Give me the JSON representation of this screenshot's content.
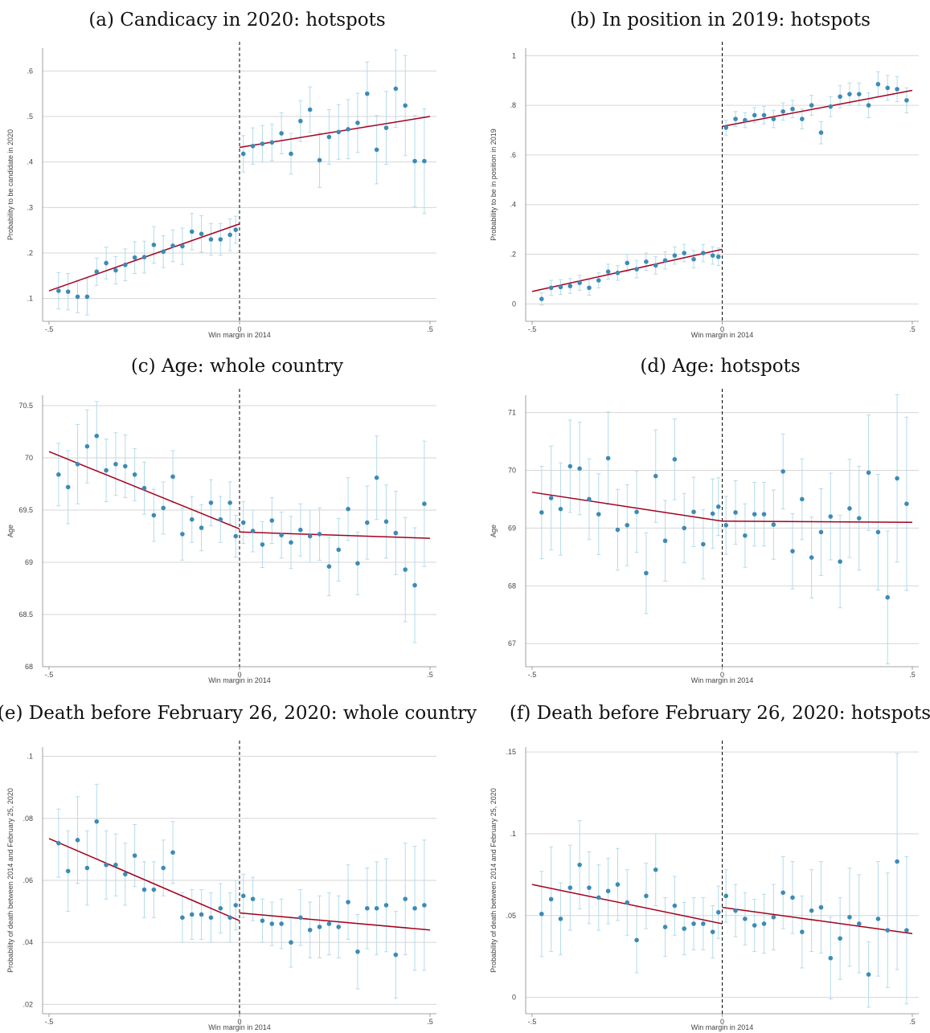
{
  "colors": {
    "point": "#3c8bb6",
    "ci": "#b5dbea",
    "fit": "#a5001c",
    "grid": "#d6d6d6"
  },
  "chart_data": [
    {
      "type": "scatter",
      "title": "(a) Candicacy in 2020: hotspots",
      "xlabel": "Win margin in 2014",
      "ylabel": "Probability to be candidate in 2020",
      "xlim": [
        -0.5,
        0.5
      ],
      "ylim": [
        0.05,
        0.65
      ],
      "yticks": [
        0.1,
        0.2,
        0.3,
        0.4,
        0.5,
        0.6
      ],
      "ytick_labels": [
        ".1",
        ".2",
        ".3",
        ".4",
        ".5",
        ".6"
      ],
      "xtick_labels": [
        "-.5",
        "0",
        ".5"
      ],
      "grid": true,
      "cutoff": 0,
      "x": [
        -0.475,
        -0.45,
        -0.425,
        -0.4,
        -0.375,
        -0.35,
        -0.325,
        -0.3,
        -0.275,
        -0.25,
        -0.225,
        -0.2,
        -0.175,
        -0.15,
        -0.125,
        -0.1,
        -0.075,
        -0.05,
        -0.025,
        -0.01,
        0.01,
        0.035,
        0.06,
        0.085,
        0.11,
        0.135,
        0.16,
        0.185,
        0.21,
        0.235,
        0.26,
        0.285,
        0.31,
        0.335,
        0.36,
        0.385,
        0.41,
        0.435,
        0.46,
        0.485
      ],
      "y": [
        0.117,
        0.115,
        0.104,
        0.104,
        0.159,
        0.178,
        0.162,
        0.174,
        0.19,
        0.191,
        0.218,
        0.203,
        0.216,
        0.215,
        0.247,
        0.242,
        0.23,
        0.23,
        0.24,
        0.251,
        0.418,
        0.435,
        0.44,
        0.443,
        0.463,
        0.418,
        0.49,
        0.515,
        0.404,
        0.455,
        0.466,
        0.472,
        0.486,
        0.55,
        0.427,
        0.475,
        0.561,
        0.524,
        0.402,
        0.402
      ],
      "ci_half": [
        0.04,
        0.04,
        0.035,
        0.04,
        0.03,
        0.035,
        0.03,
        0.035,
        0.035,
        0.035,
        0.04,
        0.035,
        0.035,
        0.04,
        0.04,
        0.04,
        0.035,
        0.035,
        0.035,
        0.03,
        0.04,
        0.04,
        0.04,
        0.04,
        0.045,
        0.045,
        0.045,
        0.05,
        0.06,
        0.06,
        0.06,
        0.065,
        0.065,
        0.07,
        0.075,
        0.08,
        0.085,
        0.11,
        0.1,
        0.115
      ],
      "fit": [
        {
          "x0": -0.5,
          "y0": 0.117,
          "x1": 0,
          "y1": 0.264
        },
        {
          "x0": 0,
          "y0": 0.432,
          "x1": 0.5,
          "y1": 0.5
        }
      ]
    },
    {
      "type": "scatter",
      "title": "(b) In position in 2019: hotspots",
      "xlabel": "Win margin in 2014",
      "ylabel": "Probability to be in position in 2019",
      "xlim": [
        -0.5,
        0.5
      ],
      "ylim": [
        -0.07,
        1.03
      ],
      "yticks": [
        0,
        0.2,
        0.4,
        0.6,
        0.8,
        1
      ],
      "ytick_labels": [
        "0",
        ".2",
        ".4",
        ".6",
        ".8",
        "1"
      ],
      "xtick_labels": [
        "-.5",
        "0",
        ".5"
      ],
      "grid": true,
      "cutoff": 0,
      "x": [
        -0.475,
        -0.45,
        -0.425,
        -0.4,
        -0.375,
        -0.35,
        -0.325,
        -0.3,
        -0.275,
        -0.25,
        -0.225,
        -0.2,
        -0.175,
        -0.15,
        -0.125,
        -0.1,
        -0.075,
        -0.05,
        -0.025,
        -0.01,
        0.01,
        0.035,
        0.06,
        0.085,
        0.11,
        0.135,
        0.16,
        0.185,
        0.21,
        0.235,
        0.26,
        0.285,
        0.31,
        0.335,
        0.36,
        0.385,
        0.41,
        0.435,
        0.46,
        0.485
      ],
      "y": [
        0.02,
        0.065,
        0.068,
        0.072,
        0.085,
        0.065,
        0.095,
        0.13,
        0.125,
        0.165,
        0.14,
        0.17,
        0.155,
        0.175,
        0.195,
        0.205,
        0.18,
        0.205,
        0.195,
        0.19,
        0.71,
        0.745,
        0.74,
        0.76,
        0.76,
        0.745,
        0.775,
        0.785,
        0.745,
        0.8,
        0.69,
        0.795,
        0.835,
        0.845,
        0.845,
        0.8,
        0.885,
        0.87,
        0.865,
        0.82
      ],
      "ci_half": [
        0.025,
        0.03,
        0.03,
        0.03,
        0.03,
        0.03,
        0.03,
        0.03,
        0.03,
        0.035,
        0.035,
        0.035,
        0.035,
        0.035,
        0.035,
        0.035,
        0.035,
        0.035,
        0.035,
        0.035,
        0.03,
        0.03,
        0.03,
        0.03,
        0.035,
        0.035,
        0.035,
        0.035,
        0.04,
        0.04,
        0.045,
        0.04,
        0.045,
        0.045,
        0.045,
        0.05,
        0.05,
        0.05,
        0.05,
        0.05
      ],
      "fit": [
        {
          "x0": -0.5,
          "y0": 0.05,
          "x1": 0,
          "y1": 0.22
        },
        {
          "x0": 0,
          "y0": 0.715,
          "x1": 0.5,
          "y1": 0.86
        }
      ]
    },
    {
      "type": "scatter",
      "title": "(c) Age: whole country",
      "xlabel": "Win margin in 2014",
      "ylabel": "Age",
      "xlim": [
        -0.5,
        0.5
      ],
      "ylim": [
        68,
        70.6
      ],
      "yticks": [
        68,
        68.5,
        69,
        69.5,
        70,
        70.5
      ],
      "ytick_labels": [
        "68",
        "68.5",
        "69",
        "69.5",
        "70",
        "70.5"
      ],
      "xtick_labels": [
        "-.5",
        "0",
        ".5"
      ],
      "grid": true,
      "cutoff": 0,
      "x": [
        -0.475,
        -0.45,
        -0.425,
        -0.4,
        -0.375,
        -0.35,
        -0.325,
        -0.3,
        -0.275,
        -0.25,
        -0.225,
        -0.2,
        -0.175,
        -0.15,
        -0.125,
        -0.1,
        -0.075,
        -0.05,
        -0.025,
        -0.01,
        0.01,
        0.035,
        0.06,
        0.085,
        0.11,
        0.135,
        0.16,
        0.185,
        0.21,
        0.235,
        0.26,
        0.285,
        0.31,
        0.335,
        0.36,
        0.385,
        0.41,
        0.435,
        0.46,
        0.485
      ],
      "y": [
        69.84,
        69.72,
        69.94,
        70.11,
        70.21,
        69.88,
        69.94,
        69.92,
        69.84,
        69.71,
        69.45,
        69.52,
        69.82,
        69.27,
        69.41,
        69.33,
        69.57,
        69.41,
        69.57,
        69.25,
        69.38,
        69.3,
        69.17,
        69.4,
        69.26,
        69.19,
        69.31,
        69.25,
        69.27,
        68.96,
        69.12,
        69.51,
        68.99,
        69.38,
        69.81,
        69.39,
        69.28,
        68.93,
        68.78,
        69.56
      ],
      "ci_half": [
        0.3,
        0.35,
        0.38,
        0.35,
        0.33,
        0.3,
        0.3,
        0.3,
        0.25,
        0.25,
        0.25,
        0.25,
        0.25,
        0.25,
        0.22,
        0.22,
        0.22,
        0.22,
        0.2,
        0.2,
        0.2,
        0.2,
        0.22,
        0.22,
        0.22,
        0.25,
        0.25,
        0.25,
        0.25,
        0.28,
        0.3,
        0.3,
        0.3,
        0.35,
        0.4,
        0.35,
        0.4,
        0.5,
        0.55,
        0.6
      ],
      "fit": [
        {
          "x0": -0.5,
          "y0": 70.06,
          "x1": 0,
          "y1": 69.32
        },
        {
          "x0": 0,
          "y0": 69.29,
          "x1": 0.5,
          "y1": 69.23
        }
      ]
    },
    {
      "type": "scatter",
      "title": "(d) Age: hotspots",
      "xlabel": "Win margin in 2014",
      "ylabel": "Age",
      "xlim": [
        -0.5,
        0.5
      ],
      "ylim": [
        66.6,
        71.3
      ],
      "yticks": [
        67,
        68,
        69,
        70,
        71
      ],
      "ytick_labels": [
        "67",
        "68",
        "69",
        "70",
        "71"
      ],
      "xtick_labels": [
        "-.5",
        "0",
        ".5"
      ],
      "grid": true,
      "cutoff": 0,
      "x": [
        -0.475,
        -0.45,
        -0.425,
        -0.4,
        -0.375,
        -0.35,
        -0.325,
        -0.3,
        -0.275,
        -0.25,
        -0.225,
        -0.2,
        -0.175,
        -0.15,
        -0.125,
        -0.1,
        -0.075,
        -0.05,
        -0.025,
        -0.01,
        0.01,
        0.035,
        0.06,
        0.085,
        0.11,
        0.135,
        0.16,
        0.185,
        0.21,
        0.235,
        0.26,
        0.285,
        0.31,
        0.335,
        0.36,
        0.385,
        0.41,
        0.435,
        0.46,
        0.485
      ],
      "y": [
        69.27,
        69.52,
        69.33,
        70.07,
        70.03,
        69.5,
        69.24,
        70.21,
        68.97,
        69.05,
        69.28,
        68.22,
        69.9,
        68.78,
        70.19,
        69,
        69.28,
        68.72,
        69.25,
        69.37,
        69.05,
        69.27,
        68.87,
        69.24,
        69.24,
        69.06,
        69.98,
        68.6,
        69.5,
        68.49,
        68.93,
        69.2,
        68.42,
        69.34,
        69.17,
        69.96,
        68.93,
        67.8,
        69.86,
        69.42
      ],
      "ci_half": [
        0.8,
        0.9,
        0.8,
        0.8,
        0.8,
        0.7,
        0.7,
        0.8,
        0.7,
        0.7,
        0.7,
        0.7,
        0.8,
        0.7,
        0.7,
        0.6,
        0.6,
        0.6,
        0.6,
        0.5,
        0.5,
        0.55,
        0.55,
        0.55,
        0.55,
        0.6,
        0.65,
        0.65,
        0.7,
        0.7,
        0.75,
        0.75,
        0.8,
        0.85,
        0.9,
        1.0,
        1.0,
        1.15,
        1.45,
        1.5
      ],
      "fit": [
        {
          "x0": -0.5,
          "y0": 69.62,
          "x1": 0,
          "y1": 69.12
        },
        {
          "x0": 0,
          "y0": 69.12,
          "x1": 0.5,
          "y1": 69.1
        }
      ]
    },
    {
      "type": "scatter",
      "title": "(e) Death before February 26, 2020: whole country",
      "xlabel": "Win margin in 2014",
      "ylabel": "Probability of death between 2014 and February 25, 2020",
      "xlim": [
        -0.5,
        0.5
      ],
      "ylim": [
        0.017,
        0.103
      ],
      "yticks": [
        0.02,
        0.04,
        0.06,
        0.08,
        0.1
      ],
      "ytick_labels": [
        ".02",
        ".04",
        ".06",
        ".08",
        ".1"
      ],
      "xtick_labels": [
        "-.5",
        "0",
        ".5"
      ],
      "grid": true,
      "cutoff": 0,
      "x": [
        -0.475,
        -0.45,
        -0.425,
        -0.4,
        -0.375,
        -0.35,
        -0.325,
        -0.3,
        -0.275,
        -0.25,
        -0.225,
        -0.2,
        -0.175,
        -0.15,
        -0.125,
        -0.1,
        -0.075,
        -0.05,
        -0.025,
        -0.01,
        0.01,
        0.035,
        0.06,
        0.085,
        0.11,
        0.135,
        0.16,
        0.185,
        0.21,
        0.235,
        0.26,
        0.285,
        0.31,
        0.335,
        0.36,
        0.385,
        0.41,
        0.435,
        0.46,
        0.485
      ],
      "y": [
        0.072,
        0.063,
        0.073,
        0.064,
        0.079,
        0.065,
        0.065,
        0.062,
        0.068,
        0.057,
        0.057,
        0.064,
        0.069,
        0.048,
        0.049,
        0.049,
        0.048,
        0.051,
        0.048,
        0.052,
        0.055,
        0.054,
        0.047,
        0.046,
        0.046,
        0.04,
        0.048,
        0.044,
        0.045,
        0.046,
        0.045,
        0.053,
        0.037,
        0.051,
        0.051,
        0.052,
        0.036,
        0.054,
        0.051,
        0.052
      ],
      "ci_half": [
        0.011,
        0.013,
        0.014,
        0.012,
        0.012,
        0.011,
        0.01,
        0.01,
        0.01,
        0.009,
        0.009,
        0.009,
        0.01,
        0.008,
        0.008,
        0.008,
        0.008,
        0.008,
        0.008,
        0.008,
        0.007,
        0.007,
        0.007,
        0.007,
        0.008,
        0.008,
        0.009,
        0.009,
        0.01,
        0.01,
        0.01,
        0.012,
        0.012,
        0.013,
        0.015,
        0.015,
        0.014,
        0.018,
        0.02,
        0.021
      ],
      "fit": [
        {
          "x0": -0.5,
          "y0": 0.0735,
          "x1": 0,
          "y1": 0.047
        },
        {
          "x0": 0,
          "y0": 0.0495,
          "x1": 0.5,
          "y1": 0.044
        }
      ]
    },
    {
      "type": "scatter",
      "title": "(f) Death before February 26, 2020: hotspots",
      "xlabel": "Win margin in 2014",
      "ylabel": "Probability of death between 2014 and February 25, 2020",
      "xlim": [
        -0.5,
        0.5
      ],
      "ylim": [
        -0.01,
        0.153
      ],
      "yticks": [
        0,
        0.05,
        0.1,
        0.15
      ],
      "ytick_labels": [
        "0",
        ".05",
        ".1",
        ".15"
      ],
      "xtick_labels": [
        "-.5",
        "0",
        ".5"
      ],
      "grid": true,
      "cutoff": 0,
      "x": [
        -0.475,
        -0.45,
        -0.425,
        -0.4,
        -0.375,
        -0.35,
        -0.325,
        -0.3,
        -0.275,
        -0.25,
        -0.225,
        -0.2,
        -0.175,
        -0.15,
        -0.125,
        -0.1,
        -0.075,
        -0.05,
        -0.025,
        -0.01,
        0.01,
        0.035,
        0.06,
        0.085,
        0.11,
        0.135,
        0.16,
        0.185,
        0.21,
        0.235,
        0.26,
        0.285,
        0.31,
        0.335,
        0.36,
        0.385,
        0.41,
        0.435,
        0.46,
        0.485
      ],
      "y": [
        0.051,
        0.06,
        0.048,
        0.067,
        0.081,
        0.067,
        0.061,
        0.065,
        0.069,
        0.058,
        0.035,
        0.062,
        0.078,
        0.043,
        0.056,
        0.042,
        0.045,
        0.045,
        0.04,
        0.052,
        0.062,
        0.053,
        0.048,
        0.044,
        0.045,
        0.049,
        0.064,
        0.061,
        0.04,
        0.053,
        0.055,
        0.024,
        0.036,
        0.049,
        0.045,
        0.014,
        0.048,
        0.041,
        0.083,
        0.041
      ],
      "ci_half": [
        0.026,
        0.032,
        0.022,
        0.026,
        0.027,
        0.022,
        0.02,
        0.02,
        0.022,
        0.02,
        0.02,
        0.02,
        0.022,
        0.018,
        0.018,
        0.016,
        0.016,
        0.016,
        0.016,
        0.016,
        0.016,
        0.016,
        0.016,
        0.016,
        0.018,
        0.02,
        0.022,
        0.022,
        0.022,
        0.025,
        0.028,
        0.025,
        0.025,
        0.03,
        0.03,
        0.02,
        0.035,
        0.035,
        0.066,
        0.045
      ],
      "fit": [
        {
          "x0": -0.5,
          "y0": 0.069,
          "x1": 0,
          "y1": 0.045
        },
        {
          "x0": 0,
          "y0": 0.055,
          "x1": 0.5,
          "y1": 0.039
        }
      ]
    }
  ]
}
